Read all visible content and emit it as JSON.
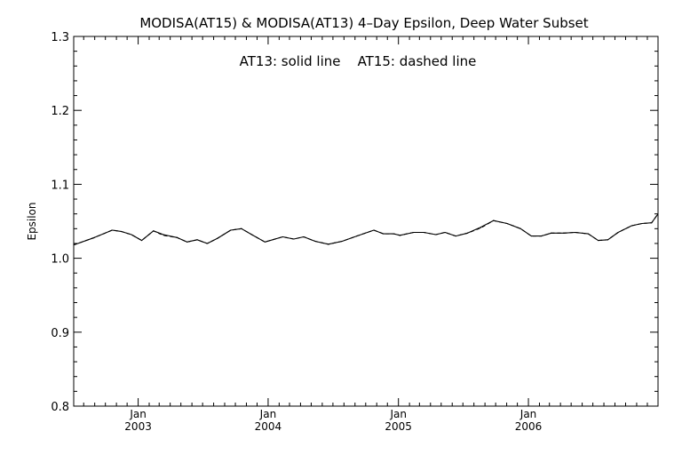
{
  "chart_data": {
    "type": "line",
    "title": "MODISA(AT15) & MODISA(AT13) 4–Day Epsilon, Deep Water Subset",
    "annotation": "AT13: solid line    AT15: dashed line",
    "xlabel": "",
    "ylabel": "Epsilon",
    "xlim": [
      "2002-07-04",
      "2006-12-31"
    ],
    "ylim": [
      0.8,
      1.3
    ],
    "grid": false,
    "y_ticks": [
      {
        "value": 0.8,
        "label": "0.8"
      },
      {
        "value": 0.9,
        "label": "0.9"
      },
      {
        "value": 1.0,
        "label": "1.0"
      },
      {
        "value": 1.1,
        "label": "1.1"
      },
      {
        "value": 1.2,
        "label": "1.2"
      },
      {
        "value": 1.3,
        "label": "1.3"
      }
    ],
    "x_ticks": [
      {
        "date": "2003-01-01",
        "label": "Jan",
        "year": "2003"
      },
      {
        "date": "2004-01-01",
        "label": "Jan",
        "year": "2004"
      },
      {
        "date": "2005-01-01",
        "label": "Jan",
        "year": "2005"
      },
      {
        "date": "2006-01-01",
        "label": "Jan",
        "year": "2006"
      }
    ],
    "series": [
      {
        "name": "AT13",
        "style": "solid",
        "color": "#000000",
        "points": [
          [
            "2002-07-04",
            1.018
          ],
          [
            "2002-08-31",
            1.028
          ],
          [
            "2002-10-20",
            1.038
          ],
          [
            "2002-11-16",
            1.036
          ],
          [
            "2002-12-13",
            1.032
          ],
          [
            "2003-01-11",
            1.024
          ],
          [
            "2003-02-13",
            1.037
          ],
          [
            "2003-03-13",
            1.032
          ],
          [
            "2003-04-20",
            1.028
          ],
          [
            "2003-05-18",
            1.022
          ],
          [
            "2003-06-16",
            1.025
          ],
          [
            "2003-07-14",
            1.02
          ],
          [
            "2003-08-12",
            1.027
          ],
          [
            "2003-09-18",
            1.038
          ],
          [
            "2003-10-18",
            1.04
          ],
          [
            "2003-11-16",
            1.032
          ],
          [
            "2003-12-23",
            1.022
          ],
          [
            "2004-02-11",
            1.029
          ],
          [
            "2004-03-13",
            1.026
          ],
          [
            "2004-04-10",
            1.029
          ],
          [
            "2004-05-12",
            1.023
          ],
          [
            "2004-06-18",
            1.019
          ],
          [
            "2004-07-27",
            1.023
          ],
          [
            "2004-09-06",
            1.03
          ],
          [
            "2004-10-24",
            1.038
          ],
          [
            "2004-11-20",
            1.033
          ],
          [
            "2004-12-19",
            1.033
          ],
          [
            "2005-01-05",
            1.031
          ],
          [
            "2005-02-13",
            1.035
          ],
          [
            "2005-03-13",
            1.035
          ],
          [
            "2005-04-16",
            1.032
          ],
          [
            "2005-05-12",
            1.035
          ],
          [
            "2005-06-11",
            1.03
          ],
          [
            "2005-07-14",
            1.034
          ],
          [
            "2005-08-20",
            1.042
          ],
          [
            "2005-09-25",
            1.051
          ],
          [
            "2005-11-02",
            1.047
          ],
          [
            "2005-12-10",
            1.04
          ],
          [
            "2006-01-09",
            1.03
          ],
          [
            "2006-02-06",
            1.03
          ],
          [
            "2006-03-06",
            1.034
          ],
          [
            "2006-04-10",
            1.034
          ],
          [
            "2006-05-12",
            1.035
          ],
          [
            "2006-06-18",
            1.033
          ],
          [
            "2006-07-16",
            1.024
          ],
          [
            "2006-08-12",
            1.025
          ],
          [
            "2006-09-10",
            1.035
          ],
          [
            "2006-10-18",
            1.044
          ],
          [
            "2006-11-16",
            1.047
          ],
          [
            "2006-12-13",
            1.048
          ],
          [
            "2006-12-31",
            1.06
          ]
        ]
      },
      {
        "name": "AT15",
        "style": "dashed",
        "color": "#000000",
        "points": [
          [
            "2002-07-04",
            1.018
          ],
          [
            "2002-08-31",
            1.028
          ],
          [
            "2002-10-20",
            1.038
          ],
          [
            "2002-11-16",
            1.036
          ],
          [
            "2002-12-13",
            1.032
          ],
          [
            "2003-01-11",
            1.024
          ],
          [
            "2003-02-13",
            1.037
          ],
          [
            "2003-03-13",
            1.031
          ],
          [
            "2003-04-20",
            1.028
          ],
          [
            "2003-05-18",
            1.022
          ],
          [
            "2003-06-16",
            1.025
          ],
          [
            "2003-07-14",
            1.02
          ],
          [
            "2003-08-12",
            1.027
          ],
          [
            "2003-09-18",
            1.038
          ],
          [
            "2003-10-18",
            1.04
          ],
          [
            "2003-11-16",
            1.032
          ],
          [
            "2003-12-23",
            1.022
          ],
          [
            "2004-02-11",
            1.029
          ],
          [
            "2004-03-13",
            1.026
          ],
          [
            "2004-04-10",
            1.029
          ],
          [
            "2004-05-12",
            1.023
          ],
          [
            "2004-06-18",
            1.019
          ],
          [
            "2004-07-27",
            1.023
          ],
          [
            "2004-09-06",
            1.03
          ],
          [
            "2004-10-24",
            1.038
          ],
          [
            "2004-11-20",
            1.033
          ],
          [
            "2004-12-19",
            1.033
          ],
          [
            "2005-01-05",
            1.031
          ],
          [
            "2005-02-13",
            1.035
          ],
          [
            "2005-03-13",
            1.035
          ],
          [
            "2005-04-16",
            1.032
          ],
          [
            "2005-05-12",
            1.035
          ],
          [
            "2005-06-11",
            1.03
          ],
          [
            "2005-07-14",
            1.034
          ],
          [
            "2005-08-20",
            1.041
          ],
          [
            "2005-09-25",
            1.051
          ],
          [
            "2005-11-02",
            1.047
          ],
          [
            "2005-12-10",
            1.04
          ],
          [
            "2006-01-09",
            1.03
          ],
          [
            "2006-02-06",
            1.03
          ],
          [
            "2006-03-06",
            1.034
          ],
          [
            "2006-04-10",
            1.034
          ],
          [
            "2006-05-12",
            1.035
          ],
          [
            "2006-06-18",
            1.033
          ],
          [
            "2006-07-16",
            1.024
          ],
          [
            "2006-08-12",
            1.025
          ],
          [
            "2006-09-10",
            1.035
          ],
          [
            "2006-10-18",
            1.044
          ],
          [
            "2006-11-16",
            1.047
          ],
          [
            "2006-12-13",
            1.048
          ],
          [
            "2006-12-31",
            1.06
          ]
        ]
      }
    ]
  }
}
